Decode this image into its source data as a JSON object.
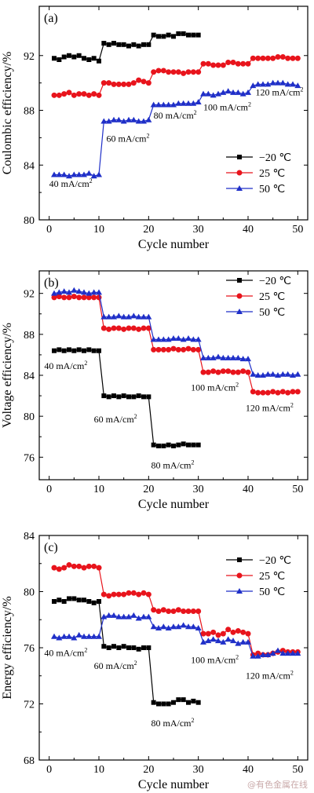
{
  "watermark": "@有色金属在线",
  "colors": {
    "series": [
      "#000000",
      "#e8141c",
      "#1f2fc8"
    ]
  },
  "markers": [
    "square",
    "circle",
    "triangle"
  ],
  "chart_data": [
    {
      "type": "line",
      "panel_label": "(a)",
      "xlabel": "Cycle number",
      "ylabel": "Coulombic efficiency/%",
      "xlim": [
        -2,
        52
      ],
      "ylim": [
        80,
        95.6
      ],
      "xticks": [
        0,
        10,
        20,
        30,
        40,
        50
      ],
      "yticks": [
        80,
        84,
        88,
        92
      ],
      "legend": {
        "placement": "right-middle",
        "entries": [
          "−20 ℃",
          "25 ℃",
          "50 ℃"
        ]
      },
      "annotations": [
        {
          "text": "40 mA/cm",
          "sup": "2",
          "x": 0,
          "y": 82.4,
          "anchor": "start"
        },
        {
          "text": "60 mA/cm",
          "sup": "2",
          "x": 11.5,
          "y": 85.7,
          "anchor": "start"
        },
        {
          "text": "80 mA/cm",
          "sup": "2",
          "x": 21,
          "y": 87.4,
          "anchor": "start"
        },
        {
          "text": "100 mA/cm",
          "sup": "2",
          "x": 31,
          "y": 88.0,
          "anchor": "start"
        },
        {
          "text": "120 mA/cm",
          "sup": "2",
          "x": 41.5,
          "y": 89.1,
          "anchor": "start"
        }
      ],
      "series": [
        {
          "name": "−20 ℃",
          "x": [
            1,
            2,
            3,
            4,
            5,
            6,
            7,
            8,
            9,
            10,
            11,
            12,
            13,
            14,
            15,
            16,
            17,
            18,
            19,
            20,
            21,
            22,
            23,
            24,
            25,
            26,
            27,
            28,
            29,
            30
          ],
          "values": [
            91.8,
            91.7,
            91.9,
            92.0,
            91.9,
            92.0,
            91.8,
            91.7,
            91.8,
            91.6,
            92.9,
            92.8,
            92.9,
            92.8,
            92.8,
            92.7,
            92.8,
            92.7,
            92.8,
            92.8,
            93.5,
            93.4,
            93.4,
            93.5,
            93.4,
            93.6,
            93.6,
            93.5,
            93.5,
            93.5
          ]
        },
        {
          "name": "25 ℃",
          "x": [
            1,
            2,
            3,
            4,
            5,
            6,
            7,
            8,
            9,
            10,
            11,
            12,
            13,
            14,
            15,
            16,
            17,
            18,
            19,
            20,
            21,
            22,
            23,
            24,
            25,
            26,
            27,
            28,
            29,
            30,
            31,
            32,
            33,
            34,
            35,
            36,
            37,
            38,
            39,
            40,
            41,
            42,
            43,
            44,
            45,
            46,
            47,
            48,
            49,
            50
          ],
          "values": [
            89.1,
            89.1,
            89.2,
            89.3,
            89.1,
            89.2,
            89.2,
            89.1,
            89.2,
            89.1,
            90.0,
            90.0,
            89.9,
            89.9,
            89.9,
            89.9,
            90.0,
            90.2,
            90.1,
            90.0,
            90.8,
            90.9,
            90.9,
            90.8,
            90.8,
            90.8,
            90.7,
            90.8,
            90.8,
            90.8,
            91.4,
            91.4,
            91.3,
            91.3,
            91.3,
            91.5,
            91.5,
            91.4,
            91.4,
            91.4,
            91.8,
            91.8,
            91.8,
            91.8,
            91.8,
            91.9,
            91.9,
            91.8,
            91.8,
            91.8
          ]
        },
        {
          "name": "50 ℃",
          "x": [
            1,
            2,
            3,
            4,
            5,
            6,
            7,
            8,
            9,
            10,
            11,
            12,
            13,
            14,
            15,
            16,
            17,
            18,
            19,
            20,
            21,
            22,
            23,
            24,
            25,
            26,
            27,
            28,
            29,
            30,
            31,
            32,
            33,
            34,
            35,
            36,
            37,
            38,
            39,
            40,
            41,
            42,
            43,
            44,
            45,
            46,
            47,
            48,
            49,
            50
          ],
          "values": [
            83.3,
            83.3,
            83.3,
            83.2,
            83.3,
            83.3,
            83.3,
            83.4,
            83.2,
            83.3,
            87.2,
            87.2,
            87.3,
            87.3,
            87.2,
            87.3,
            87.3,
            87.2,
            87.2,
            87.3,
            88.4,
            88.4,
            88.4,
            88.4,
            88.4,
            88.5,
            88.5,
            88.5,
            88.5,
            88.6,
            89.2,
            89.2,
            89.1,
            89.2,
            89.3,
            89.4,
            89.3,
            89.3,
            89.2,
            89.3,
            89.8,
            89.9,
            89.9,
            89.9,
            90.0,
            90.0,
            90.0,
            89.9,
            89.9,
            89.8
          ]
        }
      ]
    },
    {
      "type": "line",
      "panel_label": "(b)",
      "xlabel": "Cycle number",
      "ylabel": "Voltage efficiency/%",
      "xlim": [
        -2,
        52
      ],
      "ylim": [
        73.8,
        94.2
      ],
      "xticks": [
        0,
        10,
        20,
        30,
        40,
        50
      ],
      "yticks": [
        76,
        80,
        84,
        88,
        92
      ],
      "legend": {
        "placement": "top-right",
        "entries": [
          "−20 ℃",
          "25 ℃",
          "50 ℃"
        ]
      },
      "annotations": [
        {
          "text": "40 mA/cm",
          "sup": "2",
          "x": -1,
          "y": 84.6,
          "anchor": "start"
        },
        {
          "text": "60 mA/cm",
          "sup": "2",
          "x": 9,
          "y": 79.4,
          "anchor": "start"
        },
        {
          "text": "80 mA/cm",
          "sup": "2",
          "x": 20.5,
          "y": 74.9,
          "anchor": "start"
        },
        {
          "text": "100 mA/cm",
          "sup": "2",
          "x": 28.5,
          "y": 82.5,
          "anchor": "start"
        },
        {
          "text": "120 mA/cm",
          "sup": "2",
          "x": 39.5,
          "y": 80.5,
          "anchor": "start"
        }
      ],
      "series": [
        {
          "name": "−20 ℃",
          "x": [
            1,
            2,
            3,
            4,
            5,
            6,
            7,
            8,
            9,
            10,
            11,
            12,
            13,
            14,
            15,
            16,
            17,
            18,
            19,
            20,
            21,
            22,
            23,
            24,
            25,
            26,
            27,
            28,
            29,
            30
          ],
          "values": [
            86.4,
            86.5,
            86.4,
            86.5,
            86.4,
            86.5,
            86.4,
            86.5,
            86.4,
            86.4,
            82.0,
            81.9,
            82.0,
            81.9,
            82.0,
            81.9,
            81.9,
            82.0,
            81.9,
            81.9,
            77.2,
            77.1,
            77.1,
            77.2,
            77.1,
            77.2,
            77.3,
            77.2,
            77.2,
            77.2
          ]
        },
        {
          "name": "25 ℃",
          "x": [
            1,
            2,
            3,
            4,
            5,
            6,
            7,
            8,
            9,
            10,
            11,
            12,
            13,
            14,
            15,
            16,
            17,
            18,
            19,
            20,
            21,
            22,
            23,
            24,
            25,
            26,
            27,
            28,
            29,
            30,
            31,
            32,
            33,
            34,
            35,
            36,
            37,
            38,
            39,
            40,
            41,
            42,
            43,
            44,
            45,
            46,
            47,
            48,
            49,
            50
          ],
          "values": [
            91.6,
            91.7,
            91.6,
            91.6,
            91.7,
            91.6,
            91.6,
            91.6,
            91.6,
            91.6,
            88.6,
            88.5,
            88.6,
            88.6,
            88.5,
            88.6,
            88.6,
            88.5,
            88.6,
            88.6,
            86.5,
            86.5,
            86.5,
            86.5,
            86.6,
            86.5,
            86.5,
            86.6,
            86.5,
            86.5,
            84.3,
            84.3,
            84.4,
            84.3,
            84.4,
            84.4,
            84.3,
            84.3,
            84.4,
            84.3,
            82.4,
            82.3,
            82.3,
            82.3,
            82.4,
            82.3,
            82.4,
            82.3,
            82.4,
            82.4
          ]
        },
        {
          "name": "50 ℃",
          "x": [
            1,
            2,
            3,
            4,
            5,
            6,
            7,
            8,
            9,
            10,
            11,
            12,
            13,
            14,
            15,
            16,
            17,
            18,
            19,
            20,
            21,
            22,
            23,
            24,
            25,
            26,
            27,
            28,
            29,
            30,
            31,
            32,
            33,
            34,
            35,
            36,
            37,
            38,
            39,
            40,
            41,
            42,
            43,
            44,
            45,
            46,
            47,
            48,
            49,
            50
          ],
          "values": [
            92.0,
            92.1,
            92.2,
            92.1,
            92.3,
            92.2,
            92.1,
            92.0,
            92.1,
            92.1,
            89.7,
            89.7,
            89.7,
            89.8,
            89.7,
            89.7,
            89.8,
            89.7,
            89.7,
            89.7,
            87.5,
            87.5,
            87.5,
            87.5,
            87.6,
            87.6,
            87.5,
            87.6,
            87.5,
            87.5,
            85.7,
            85.7,
            85.7,
            85.8,
            85.7,
            85.7,
            85.7,
            85.7,
            85.6,
            85.6,
            84.1,
            84.0,
            84.0,
            84.1,
            84.1,
            84.0,
            84.1,
            84.1,
            84.0,
            84.1
          ]
        }
      ]
    },
    {
      "type": "line",
      "panel_label": "(c)",
      "xlabel": "Cycle number",
      "ylabel": "Energy efficiency/%",
      "xlim": [
        -2,
        52
      ],
      "ylim": [
        68,
        84
      ],
      "xticks": [
        0,
        10,
        20,
        30,
        40,
        50
      ],
      "yticks": [
        68,
        72,
        76,
        80,
        84
      ],
      "legend": {
        "placement": "top-right",
        "entries": [
          "−20 ℃",
          "25 ℃",
          "50 ℃"
        ]
      },
      "annotations": [
        {
          "text": "40 mA/cm",
          "sup": "2",
          "x": -1,
          "y": 75.4,
          "anchor": "start"
        },
        {
          "text": "60 mA/cm",
          "sup": "2",
          "x": 9,
          "y": 74.5,
          "anchor": "start"
        },
        {
          "text": "80 mA/cm",
          "sup": "2",
          "x": 20.5,
          "y": 70.4,
          "anchor": "start"
        },
        {
          "text": "100 mA/cm",
          "sup": "2",
          "x": 28.5,
          "y": 74.9,
          "anchor": "start"
        },
        {
          "text": "120 mA/cm",
          "sup": "2",
          "x": 39.5,
          "y": 73.8,
          "anchor": "start"
        }
      ],
      "series": [
        {
          "name": "−20 ℃",
          "x": [
            1,
            2,
            3,
            4,
            5,
            6,
            7,
            8,
            9,
            10,
            11,
            12,
            13,
            14,
            15,
            16,
            17,
            18,
            19,
            20,
            21,
            22,
            23,
            24,
            25,
            26,
            27,
            28,
            29,
            30
          ],
          "values": [
            79.3,
            79.4,
            79.3,
            79.5,
            79.5,
            79.4,
            79.4,
            79.3,
            79.2,
            79.3,
            76.1,
            76.0,
            76.1,
            76.0,
            76.1,
            76.0,
            76.0,
            75.9,
            76.0,
            76.0,
            72.1,
            72.0,
            72.0,
            72.0,
            72.1,
            72.3,
            72.3,
            72.1,
            72.2,
            72.1
          ]
        },
        {
          "name": "25 ℃",
          "x": [
            1,
            2,
            3,
            4,
            5,
            6,
            7,
            8,
            9,
            10,
            11,
            12,
            13,
            14,
            15,
            16,
            17,
            18,
            19,
            20,
            21,
            22,
            23,
            24,
            25,
            26,
            27,
            28,
            29,
            30,
            31,
            32,
            33,
            34,
            35,
            36,
            37,
            38,
            39,
            40,
            41,
            42,
            43,
            44,
            45,
            46,
            47,
            48,
            49,
            50
          ],
          "values": [
            81.7,
            81.6,
            81.7,
            81.9,
            81.8,
            81.8,
            81.7,
            81.8,
            81.8,
            81.7,
            79.8,
            79.7,
            79.8,
            79.8,
            79.8,
            79.9,
            79.9,
            79.8,
            79.9,
            79.8,
            78.7,
            78.6,
            78.7,
            78.6,
            78.6,
            78.7,
            78.6,
            78.6,
            78.6,
            78.6,
            77.0,
            77.0,
            77.1,
            76.9,
            77.0,
            77.3,
            77.1,
            77.2,
            77.1,
            77.0,
            75.5,
            75.6,
            75.5,
            75.5,
            75.6,
            75.7,
            75.8,
            75.7,
            75.7,
            75.7
          ]
        },
        {
          "name": "50 ℃",
          "x": [
            1,
            2,
            3,
            4,
            5,
            6,
            7,
            8,
            9,
            10,
            11,
            12,
            13,
            14,
            15,
            16,
            17,
            18,
            19,
            20,
            21,
            22,
            23,
            24,
            25,
            26,
            27,
            28,
            29,
            30,
            31,
            32,
            33,
            34,
            35,
            36,
            37,
            38,
            39,
            40,
            41,
            42,
            43,
            44,
            45,
            46,
            47,
            48,
            49,
            50
          ],
          "values": [
            76.8,
            76.7,
            76.8,
            76.8,
            76.7,
            76.9,
            76.8,
            76.8,
            76.8,
            76.8,
            78.2,
            78.3,
            78.3,
            78.2,
            78.2,
            78.2,
            78.3,
            78.1,
            78.2,
            78.2,
            77.5,
            77.4,
            77.5,
            77.4,
            77.5,
            77.5,
            77.6,
            77.5,
            77.5,
            77.4,
            76.4,
            76.5,
            76.6,
            76.5,
            76.4,
            76.6,
            76.5,
            76.3,
            76.4,
            76.4,
            75.4,
            75.4,
            75.5,
            75.5,
            75.6,
            75.8,
            75.6,
            75.6,
            75.6,
            75.6
          ]
        }
      ]
    }
  ]
}
